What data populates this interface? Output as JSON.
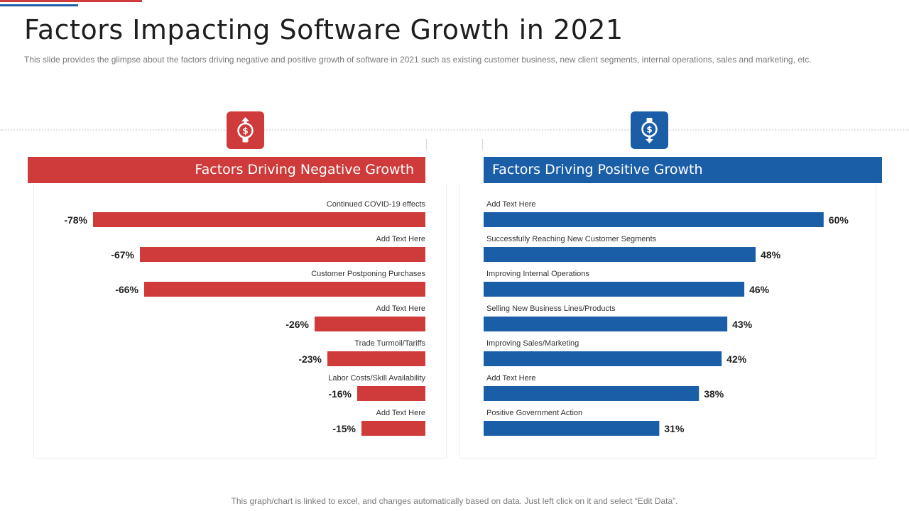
{
  "slide": {
    "title": "Factors Impacting Software Growth in 2021",
    "subtitle": "This slide provides the glimpse about the factors driving negative and positive growth of software in 2021 such as existing customer business, new client segments, internal operations, sales and marketing, etc.",
    "footer": "This graph/chart is linked to excel,  and changes automatically based on data. Just left click on it and select “Edit Data”."
  },
  "panels": {
    "negative": {
      "header": "Factors Driving Negative Growth",
      "icon": "dollar-arrow-up-icon",
      "color": "#cf3a3a"
    },
    "positive": {
      "header": "Factors Driving Positive Growth",
      "icon": "dollar-arrow-down-icon",
      "color": "#1b5ea8"
    }
  },
  "chart_data": [
    {
      "type": "bar",
      "orientation": "horizontal",
      "title": "Factors Driving Negative Growth",
      "categories": [
        "Continued COVID-19 effects",
        "Add Text Here",
        "Customer Postponing Purchases",
        "Add Text Here",
        "Trade Turmoil/Tariffs",
        "Labor Costs/Skill Availability",
        "Add Text Here"
      ],
      "values": [
        -78,
        -67,
        -66,
        -26,
        -23,
        -16,
        -15
      ],
      "value_labels": [
        "-78%",
        "-67%",
        "-66%",
        "-26%",
        "-23%",
        "-16%",
        "-15%"
      ],
      "xlim": [
        -100,
        0
      ],
      "color": "#cf3a3a",
      "grid": false
    },
    {
      "type": "bar",
      "orientation": "horizontal",
      "title": "Factors Driving Positive Growth",
      "categories": [
        "Add Text Here",
        "Successfully Reaching New Customer Segments",
        "Improving Internal Operations",
        "Selling New Business Lines/Products",
        "Improving Sales/Marketing",
        "Add Text Here",
        "Positive Government Action"
      ],
      "values": [
        60,
        48,
        46,
        43,
        42,
        38,
        31
      ],
      "value_labels": [
        "60%",
        "48%",
        "46%",
        "43%",
        "42%",
        "38%",
        "31%"
      ],
      "xlim": [
        0,
        100
      ],
      "color": "#1b5ea8",
      "grid": false
    }
  ]
}
